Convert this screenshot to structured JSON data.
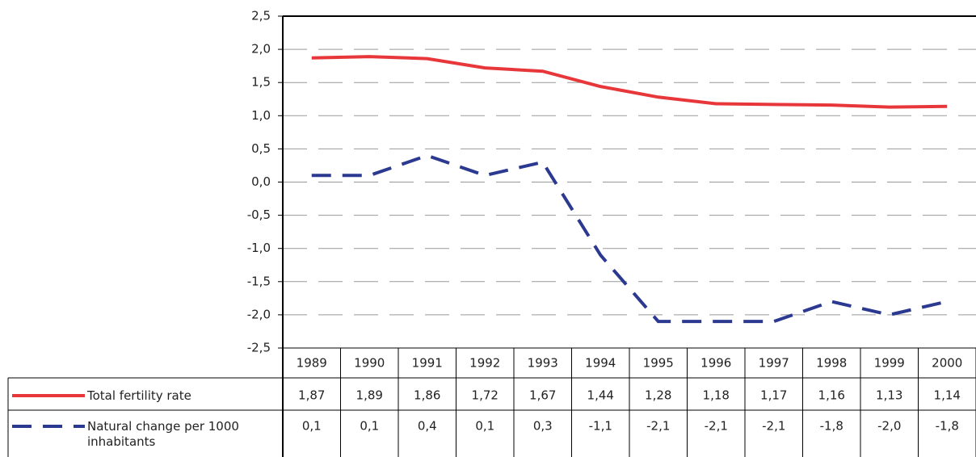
{
  "chart_data": {
    "type": "line",
    "categories": [
      "1989",
      "1990",
      "1991",
      "1992",
      "1993",
      "1994",
      "1995",
      "1996",
      "1997",
      "1998",
      "1999",
      "2000"
    ],
    "series": [
      {
        "name": "Total fertility rate",
        "color": "#e8373a",
        "dash": false,
        "values": [
          1.87,
          1.89,
          1.86,
          1.72,
          1.67,
          1.44,
          1.28,
          1.18,
          1.17,
          1.16,
          1.13,
          1.14
        ],
        "value_labels": [
          "1,87",
          "1,89",
          "1,86",
          "1,72",
          "1,67",
          "1,44",
          "1,28",
          "1,18",
          "1,17",
          "1,16",
          "1,13",
          "1,14"
        ]
      },
      {
        "name": "Natural change per 1000 inhabitants",
        "color": "#2b3990",
        "dash": true,
        "values": [
          0.1,
          0.1,
          0.4,
          0.1,
          0.3,
          -1.1,
          -2.1,
          -2.1,
          -2.1,
          -1.8,
          -2.0,
          -1.8
        ],
        "value_labels": [
          "0,1",
          "0,1",
          "0,4",
          "0,1",
          "0,3",
          "-1,1",
          "-2,1",
          "-2,1",
          "-2,1",
          "-1,8",
          "-2,0",
          "-1,8"
        ]
      }
    ],
    "ylim": [
      -2.5,
      2.5
    ],
    "yticks": [
      {
        "value": -2.5,
        "label": "-2,5"
      },
      {
        "value": -2,
        "label": "-2,0"
      },
      {
        "value": -1.5,
        "label": "-1,5"
      },
      {
        "value": -1,
        "label": "-1,0"
      },
      {
        "value": -0.5,
        "label": "-0,5"
      },
      {
        "value": 0,
        "label": "0,0"
      },
      {
        "value": 0.5,
        "label": "0,5"
      },
      {
        "value": 1,
        "label": "1,0"
      },
      {
        "value": 1.5,
        "label": "1,5"
      },
      {
        "value": 2,
        "label": "2,0"
      },
      {
        "value": 2.5,
        "label": "2,5"
      }
    ],
    "grid": true
  }
}
